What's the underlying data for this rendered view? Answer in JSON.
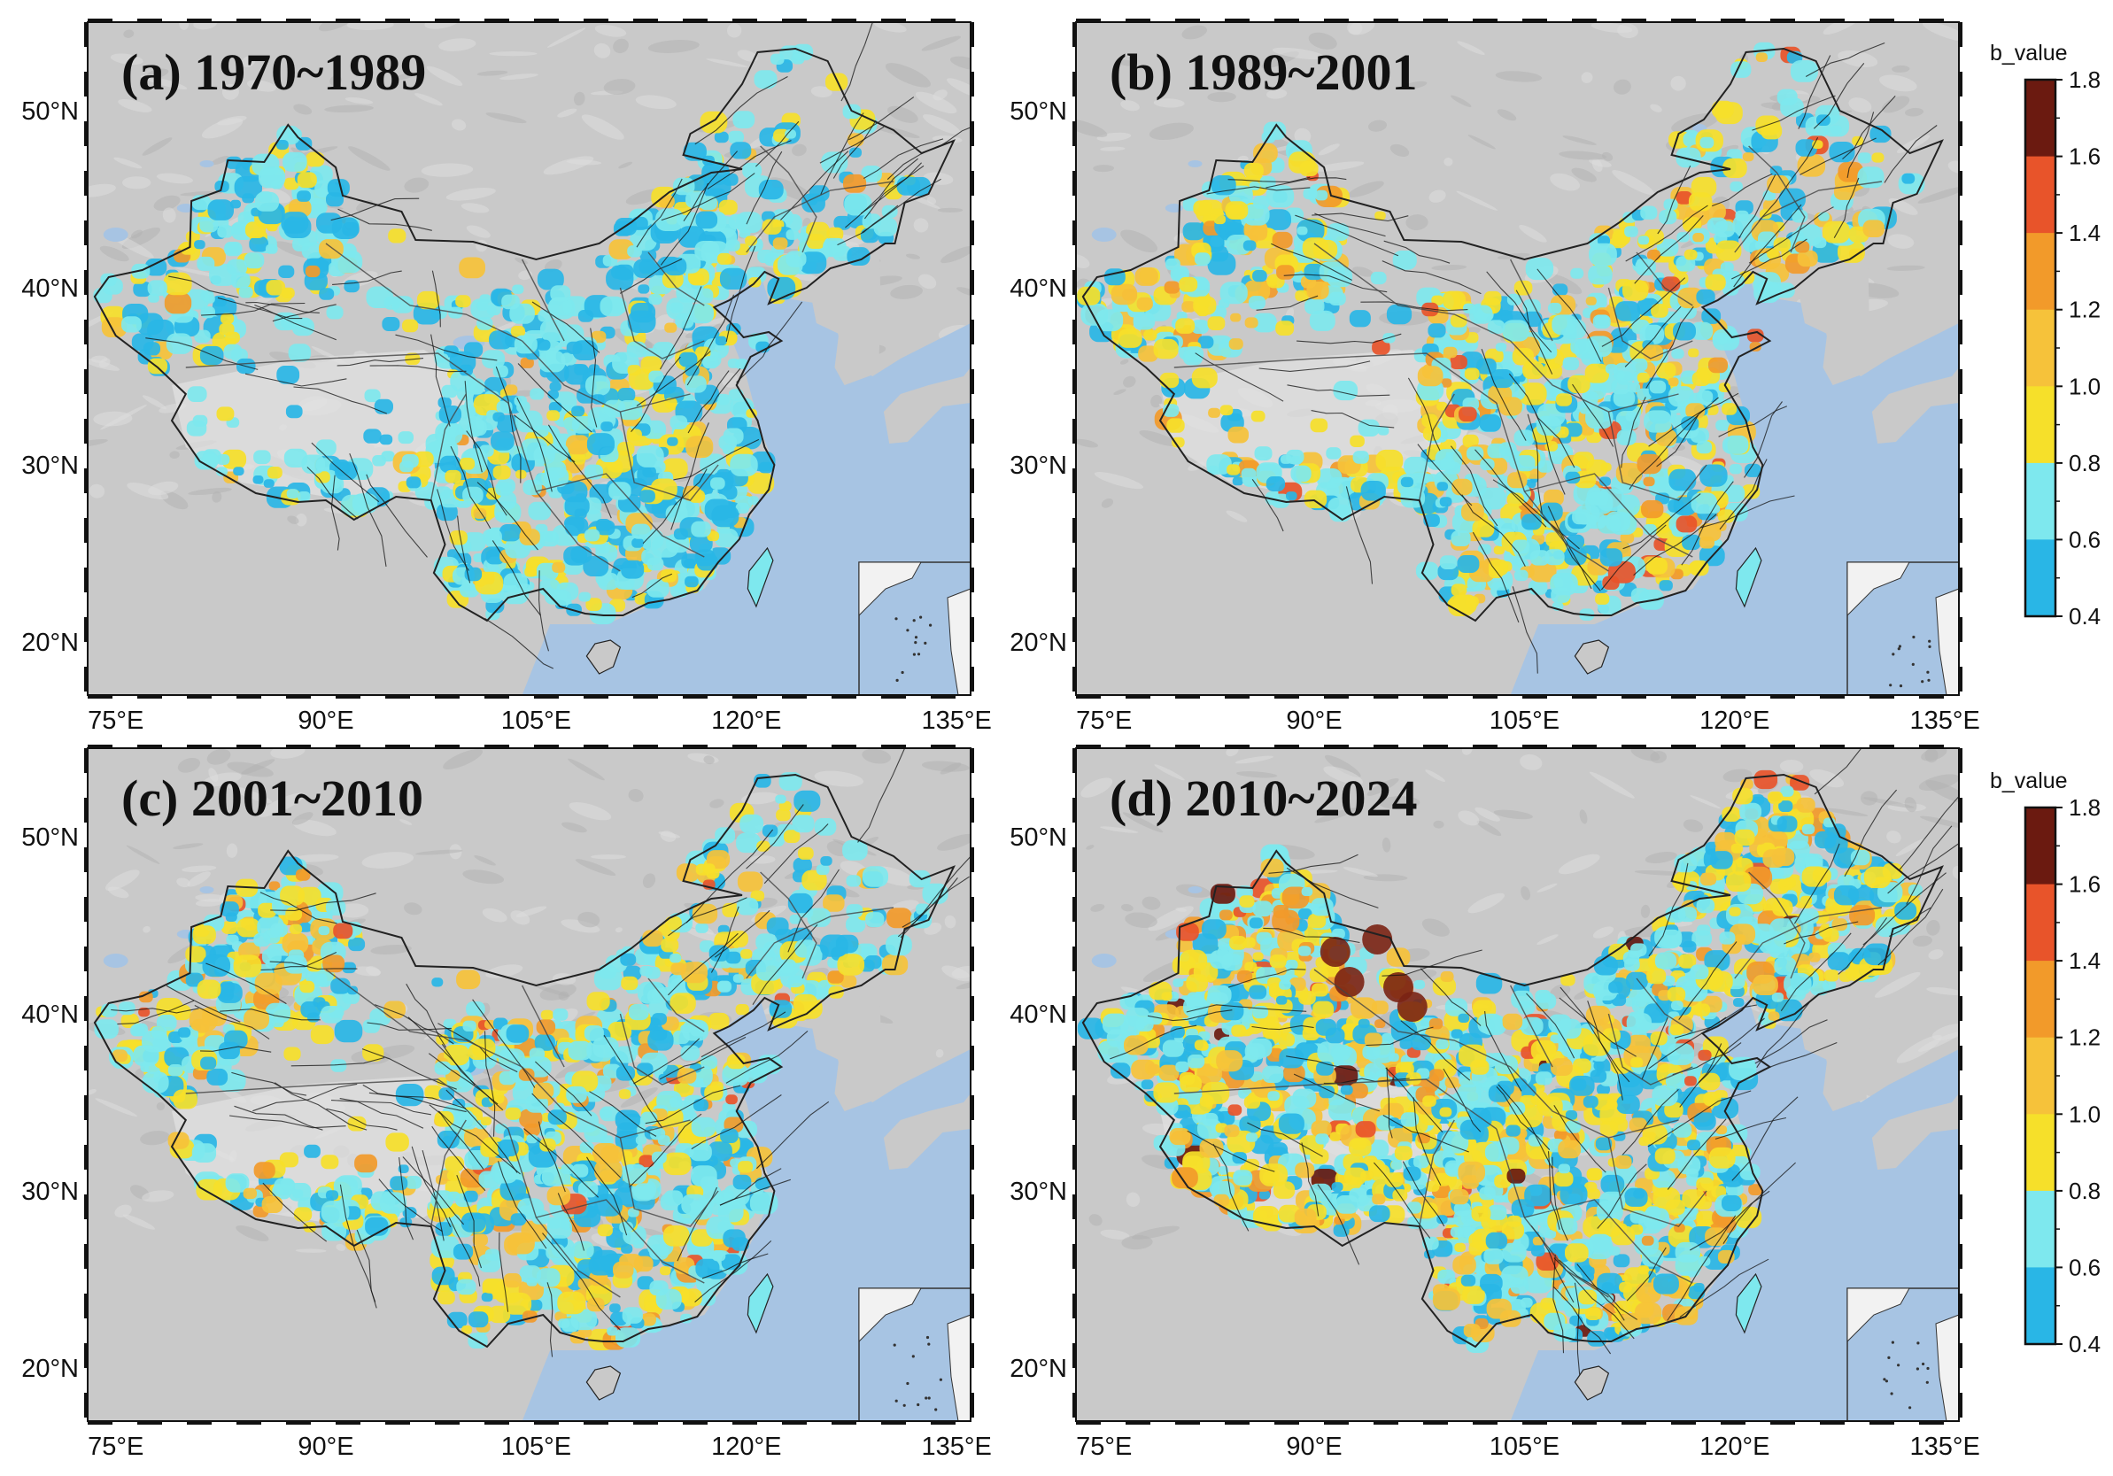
{
  "panels": [
    {
      "title": "(a) 1970~1989",
      "palette": [
        "#29b6e6",
        "#7ee8ee",
        "#f6e02a",
        "#f6c23a",
        "#f29a2a"
      ],
      "weights": [
        0.3,
        0.45,
        0.17,
        0.06,
        0.02
      ],
      "colorbar": false
    },
    {
      "title": "(b) 1989~2001",
      "palette": [
        "#29b6e6",
        "#7ee8ee",
        "#f6e02a",
        "#f6c23a",
        "#f29a2a",
        "#e8542a"
      ],
      "weights": [
        0.18,
        0.4,
        0.24,
        0.12,
        0.04,
        0.02
      ],
      "colorbar": true
    },
    {
      "title": "(c) 2001~2010",
      "palette": [
        "#29b6e6",
        "#7ee8ee",
        "#f6e02a",
        "#f6c23a",
        "#f29a2a",
        "#e8542a"
      ],
      "weights": [
        0.22,
        0.4,
        0.22,
        0.1,
        0.04,
        0.02
      ],
      "colorbar": false
    },
    {
      "title": "(d) 2010~2024",
      "palette": [
        "#29b6e6",
        "#7ee8ee",
        "#f6e02a",
        "#f6c23a",
        "#f29a2a",
        "#e8542a",
        "#6b1a10"
      ],
      "weights": [
        0.22,
        0.34,
        0.24,
        0.12,
        0.05,
        0.02,
        0.01
      ],
      "colorbar": true
    }
  ],
  "axes": {
    "lon_ticks": [
      "75°E",
      "90°E",
      "105°E",
      "120°E",
      "135°E"
    ],
    "lon_values": [
      75,
      90,
      105,
      120,
      135
    ],
    "lat_ticks": [
      "20°N",
      "30°N",
      "40°N",
      "50°N"
    ],
    "lat_values": [
      20,
      30,
      40,
      50
    ],
    "lon_range": [
      73,
      136
    ],
    "lat_range": [
      17,
      55
    ]
  },
  "colorbar": {
    "title": "b_value",
    "labels": [
      "1.8",
      "1.6",
      "1.4",
      "1.2",
      "1.0",
      "0.8",
      "0.6",
      "0.4"
    ],
    "colors": [
      "#6b1a10",
      "#e8542a",
      "#f29a2a",
      "#f6c23a",
      "#f6e02a",
      "#7ee8ee",
      "#29b6e6"
    ]
  },
  "colors": {
    "land": "#c9c9c9",
    "land_relief": "#b3b3b3",
    "ocean": "#a7c4e3",
    "border": "#222222",
    "fault": "#111111"
  }
}
